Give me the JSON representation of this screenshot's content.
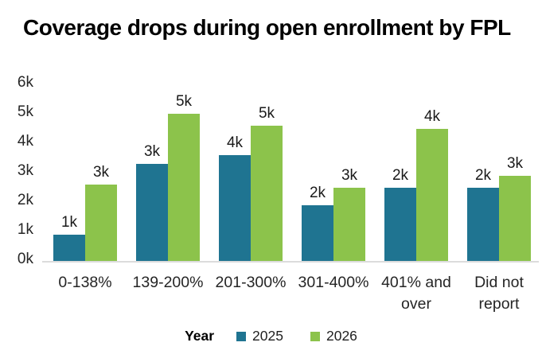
{
  "title": "Coverage drops during open enrollment by FPL",
  "chart_data": {
    "type": "bar",
    "title": "Coverage drops during open enrollment by FPL",
    "categories": [
      "0-138%",
      "139-200%",
      "201-300%",
      "301-400%",
      "401% and over",
      "Did not report"
    ],
    "series": [
      {
        "name": "2025",
        "color": "#1F7491",
        "values": [
          0.9,
          3.3,
          3.6,
          1.9,
          2.5,
          2.5
        ],
        "data_labels": [
          "1k",
          "3k",
          "4k",
          "2k",
          "2k",
          "2k"
        ]
      },
      {
        "name": "2026",
        "color": "#8CC34B",
        "values": [
          2.6,
          5.0,
          4.6,
          2.5,
          4.5,
          2.9
        ],
        "data_labels": [
          "3k",
          "5k",
          "5k",
          "3k",
          "4k",
          "3k"
        ]
      }
    ],
    "unit": "k",
    "y_ticks": [
      "0k",
      "1k",
      "2k",
      "3k",
      "4k",
      "5k",
      "6k"
    ],
    "ylim": [
      0,
      6
    ],
    "grid": false,
    "legend": {
      "title": "Year",
      "position": "bottom"
    },
    "colors": {
      "axis_line": "#DCDCDC",
      "tick_label": "#262626",
      "data_label": "#1A1A1A",
      "title": "#000000"
    }
  }
}
